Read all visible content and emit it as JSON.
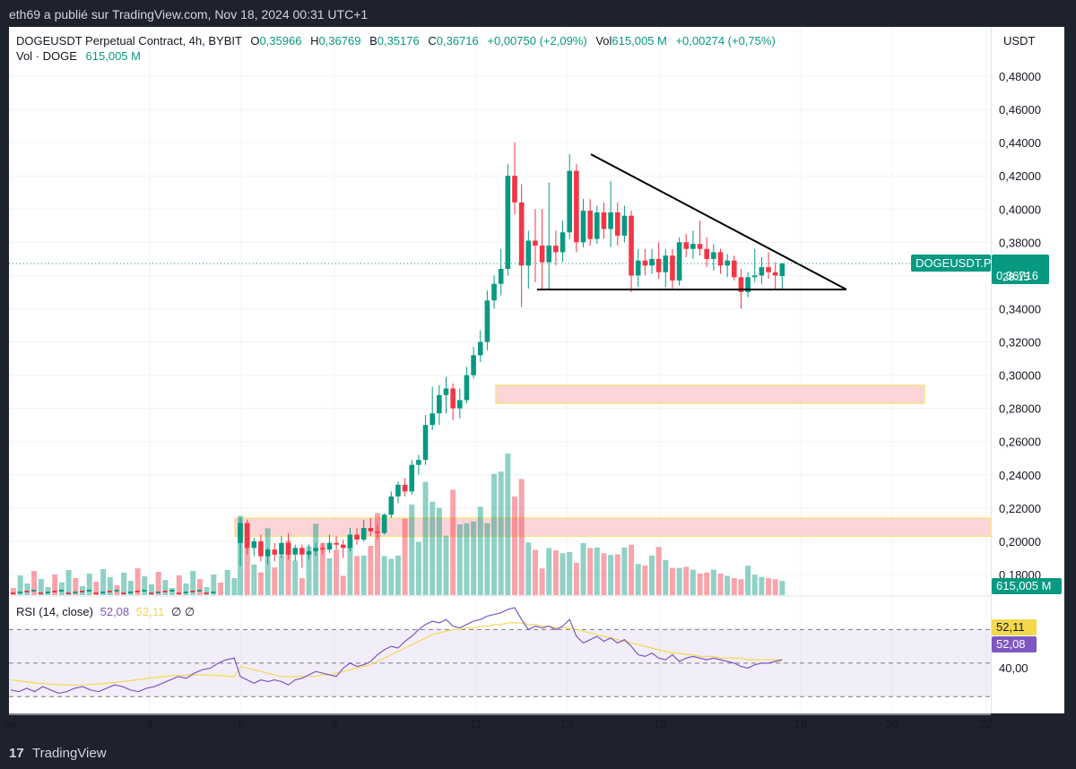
{
  "header": {
    "text": "eth69 a publié sur TradingView.com, Nov 18, 2024 00:31 UTC+1"
  },
  "legend": {
    "symbol": "DOGEUSDT Perpetual Contract, 4h, BYBIT",
    "o_label": "O",
    "o": "0,35966",
    "h_label": "H",
    "h": "0,36769",
    "b_label": "B",
    "b": "0,35176",
    "c_label": "C",
    "c": "0,36716",
    "chg": "+0,00750 (+2,09%)",
    "vol_label": "Vol",
    "vol": "615,005 M",
    "vol_chg": "+0,00274 (+0,75%)",
    "vol_row_label": "Vol · DOGE",
    "vol_row_value": "615,005 M"
  },
  "rsi_legend": {
    "label": "RSI (14, close)",
    "v1": "52,08",
    "v2": "52,11",
    "icons": "∅  ∅"
  },
  "scale": {
    "currency": "USDT"
  },
  "badges": {
    "symbol": "DOGEUSDT.P",
    "price": "0,36716",
    "countdown": "28:15",
    "volume": "615,005 M",
    "rsi_ma": "52,11",
    "rsi": "52,08",
    "rsi_level": "40,00"
  },
  "footer": {
    "logo": "17",
    "brand": "TradingView"
  },
  "colors": {
    "up": "#089981",
    "down": "#f23645",
    "rsi": "#7e57c2",
    "rsi_ma": "#f3d84e",
    "zone": "#fcd5d8"
  },
  "chart_data": {
    "type": "candlestick",
    "y_unit": "USDT",
    "price_ticks": [
      "0,48000",
      "0,46000",
      "0,44000",
      "0,42000",
      "0,40000",
      "0,38000",
      "0,36000",
      "0,34000",
      "0,32000",
      "0,30000",
      "0,28000",
      "0,26000",
      "0,24000",
      "0,22000",
      "0,20000",
      "0,18000"
    ],
    "ylim": [
      0.16,
      0.49
    ],
    "x_ticks": [
      "ov",
      "4",
      "6",
      "8",
      "11",
      "13",
      "15",
      "18",
      "20",
      "22"
    ],
    "candles": [
      {
        "o": 0.199,
        "h": 0.214,
        "l": 0.185,
        "c": 0.211
      },
      {
        "o": 0.211,
        "h": 0.213,
        "l": 0.192,
        "c": 0.196
      },
      {
        "o": 0.196,
        "h": 0.202,
        "l": 0.191,
        "c": 0.2
      },
      {
        "o": 0.2,
        "h": 0.204,
        "l": 0.188,
        "c": 0.191
      },
      {
        "o": 0.191,
        "h": 0.196,
        "l": 0.186,
        "c": 0.195
      },
      {
        "o": 0.195,
        "h": 0.199,
        "l": 0.188,
        "c": 0.192
      },
      {
        "o": 0.192,
        "h": 0.203,
        "l": 0.19,
        "c": 0.199
      },
      {
        "o": 0.199,
        "h": 0.205,
        "l": 0.189,
        "c": 0.192
      },
      {
        "o": 0.192,
        "h": 0.198,
        "l": 0.188,
        "c": 0.196
      },
      {
        "o": 0.196,
        "h": 0.198,
        "l": 0.184,
        "c": 0.192
      },
      {
        "o": 0.192,
        "h": 0.198,
        "l": 0.189,
        "c": 0.194
      },
      {
        "o": 0.194,
        "h": 0.199,
        "l": 0.191,
        "c": 0.196
      },
      {
        "o": 0.196,
        "h": 0.199,
        "l": 0.192,
        "c": 0.195
      },
      {
        "o": 0.195,
        "h": 0.204,
        "l": 0.193,
        "c": 0.199
      },
      {
        "o": 0.199,
        "h": 0.203,
        "l": 0.195,
        "c": 0.198
      },
      {
        "o": 0.198,
        "h": 0.201,
        "l": 0.19,
        "c": 0.196
      },
      {
        "o": 0.196,
        "h": 0.208,
        "l": 0.194,
        "c": 0.204
      },
      {
        "o": 0.204,
        "h": 0.208,
        "l": 0.198,
        "c": 0.201
      },
      {
        "o": 0.201,
        "h": 0.213,
        "l": 0.2,
        "c": 0.208
      },
      {
        "o": 0.208,
        "h": 0.214,
        "l": 0.203,
        "c": 0.206
      },
      {
        "o": 0.206,
        "h": 0.21,
        "l": 0.201,
        "c": 0.205
      },
      {
        "o": 0.205,
        "h": 0.217,
        "l": 0.204,
        "c": 0.216
      },
      {
        "o": 0.216,
        "h": 0.23,
        "l": 0.214,
        "c": 0.227
      },
      {
        "o": 0.227,
        "h": 0.236,
        "l": 0.223,
        "c": 0.234
      },
      {
        "o": 0.234,
        "h": 0.238,
        "l": 0.227,
        "c": 0.23
      },
      {
        "o": 0.23,
        "h": 0.249,
        "l": 0.228,
        "c": 0.246
      },
      {
        "o": 0.246,
        "h": 0.252,
        "l": 0.24,
        "c": 0.249
      },
      {
        "o": 0.249,
        "h": 0.276,
        "l": 0.246,
        "c": 0.27
      },
      {
        "o": 0.27,
        "h": 0.293,
        "l": 0.267,
        "c": 0.277
      },
      {
        "o": 0.277,
        "h": 0.294,
        "l": 0.27,
        "c": 0.288
      },
      {
        "o": 0.288,
        "h": 0.299,
        "l": 0.277,
        "c": 0.292
      },
      {
        "o": 0.292,
        "h": 0.295,
        "l": 0.273,
        "c": 0.28
      },
      {
        "o": 0.28,
        "h": 0.292,
        "l": 0.274,
        "c": 0.285
      },
      {
        "o": 0.285,
        "h": 0.305,
        "l": 0.283,
        "c": 0.3
      },
      {
        "o": 0.3,
        "h": 0.317,
        "l": 0.298,
        "c": 0.312
      },
      {
        "o": 0.312,
        "h": 0.327,
        "l": 0.308,
        "c": 0.32
      },
      {
        "o": 0.32,
        "h": 0.351,
        "l": 0.315,
        "c": 0.345
      },
      {
        "o": 0.345,
        "h": 0.36,
        "l": 0.34,
        "c": 0.355
      },
      {
        "o": 0.355,
        "h": 0.376,
        "l": 0.348,
        "c": 0.364
      },
      {
        "o": 0.364,
        "h": 0.427,
        "l": 0.36,
        "c": 0.42
      },
      {
        "o": 0.42,
        "h": 0.44,
        "l": 0.397,
        "c": 0.404
      },
      {
        "o": 0.404,
        "h": 0.415,
        "l": 0.341,
        "c": 0.366
      },
      {
        "o": 0.366,
        "h": 0.387,
        "l": 0.352,
        "c": 0.381
      },
      {
        "o": 0.381,
        "h": 0.4,
        "l": 0.356,
        "c": 0.378
      },
      {
        "o": 0.378,
        "h": 0.4,
        "l": 0.352,
        "c": 0.368
      },
      {
        "o": 0.368,
        "h": 0.416,
        "l": 0.352,
        "c": 0.378
      },
      {
        "o": 0.378,
        "h": 0.387,
        "l": 0.366,
        "c": 0.374
      },
      {
        "o": 0.374,
        "h": 0.393,
        "l": 0.368,
        "c": 0.386
      },
      {
        "o": 0.386,
        "h": 0.433,
        "l": 0.382,
        "c": 0.423
      },
      {
        "o": 0.423,
        "h": 0.427,
        "l": 0.374,
        "c": 0.38
      },
      {
        "o": 0.38,
        "h": 0.406,
        "l": 0.377,
        "c": 0.399
      },
      {
        "o": 0.399,
        "h": 0.406,
        "l": 0.378,
        "c": 0.382
      },
      {
        "o": 0.382,
        "h": 0.402,
        "l": 0.379,
        "c": 0.398
      },
      {
        "o": 0.398,
        "h": 0.404,
        "l": 0.382,
        "c": 0.388
      },
      {
        "o": 0.388,
        "h": 0.417,
        "l": 0.377,
        "c": 0.398
      },
      {
        "o": 0.398,
        "h": 0.404,
        "l": 0.378,
        "c": 0.384
      },
      {
        "o": 0.384,
        "h": 0.402,
        "l": 0.38,
        "c": 0.396
      },
      {
        "o": 0.396,
        "h": 0.399,
        "l": 0.35,
        "c": 0.36
      },
      {
        "o": 0.36,
        "h": 0.376,
        "l": 0.353,
        "c": 0.369
      },
      {
        "o": 0.369,
        "h": 0.376,
        "l": 0.36,
        "c": 0.366
      },
      {
        "o": 0.366,
        "h": 0.376,
        "l": 0.361,
        "c": 0.37
      },
      {
        "o": 0.37,
        "h": 0.38,
        "l": 0.358,
        "c": 0.362
      },
      {
        "o": 0.362,
        "h": 0.376,
        "l": 0.353,
        "c": 0.372
      },
      {
        "o": 0.372,
        "h": 0.376,
        "l": 0.352,
        "c": 0.357
      },
      {
        "o": 0.357,
        "h": 0.383,
        "l": 0.354,
        "c": 0.38
      },
      {
        "o": 0.38,
        "h": 0.385,
        "l": 0.371,
        "c": 0.376
      },
      {
        "o": 0.376,
        "h": 0.387,
        "l": 0.37,
        "c": 0.379
      },
      {
        "o": 0.379,
        "h": 0.393,
        "l": 0.372,
        "c": 0.376
      },
      {
        "o": 0.376,
        "h": 0.383,
        "l": 0.365,
        "c": 0.37
      },
      {
        "o": 0.37,
        "h": 0.379,
        "l": 0.363,
        "c": 0.374
      },
      {
        "o": 0.374,
        "h": 0.376,
        "l": 0.361,
        "c": 0.366
      },
      {
        "o": 0.366,
        "h": 0.373,
        "l": 0.359,
        "c": 0.369
      },
      {
        "o": 0.369,
        "h": 0.372,
        "l": 0.357,
        "c": 0.359
      },
      {
        "o": 0.359,
        "h": 0.364,
        "l": 0.34,
        "c": 0.35
      },
      {
        "o": 0.35,
        "h": 0.362,
        "l": 0.347,
        "c": 0.359
      },
      {
        "o": 0.359,
        "h": 0.376,
        "l": 0.356,
        "c": 0.36
      },
      {
        "o": 0.36,
        "h": 0.371,
        "l": 0.355,
        "c": 0.365
      },
      {
        "o": 0.365,
        "h": 0.374,
        "l": 0.358,
        "c": 0.362
      },
      {
        "o": 0.362,
        "h": 0.368,
        "l": 0.352,
        "c": 0.36
      },
      {
        "o": 0.3597,
        "h": 0.3677,
        "l": 0.3518,
        "c": 0.3672
      }
    ],
    "volume": [
      140,
      102,
      54,
      40,
      118,
      49,
      70,
      96,
      61,
      30,
      86,
      126,
      92,
      65,
      80,
      34,
      100,
      69,
      70,
      87,
      145,
      69,
      64,
      70,
      135,
      160,
      94,
      200,
      165,
      154,
      105,
      186,
      125,
      127,
      130,
      156,
      127,
      214,
      218,
      250,
      174,
      205,
      93,
      80,
      47,
      83,
      79,
      74,
      76,
      57,
      92,
      83,
      84,
      74,
      71,
      72,
      84,
      89,
      55,
      52,
      70,
      85,
      62,
      48,
      48,
      50,
      45,
      38,
      40,
      45,
      38,
      34,
      30,
      28,
      52,
      36,
      32,
      30,
      28,
      25
    ],
    "rsi": [
      42,
      40,
      38,
      40,
      39,
      40,
      39,
      37,
      40,
      41,
      43,
      45,
      44,
      43,
      42,
      47,
      50,
      48,
      49,
      51,
      55,
      58,
      60,
      59,
      63,
      66,
      70,
      73,
      75,
      74,
      76,
      72,
      71,
      73,
      75,
      76,
      78,
      79,
      80,
      82,
      83,
      76,
      70,
      72,
      71,
      72,
      70,
      72,
      76,
      66,
      62,
      64,
      66,
      63,
      65,
      62,
      64,
      60,
      55,
      54,
      56,
      53,
      52,
      55,
      51,
      53,
      54,
      53,
      52,
      53,
      52,
      51,
      50,
      48,
      47,
      49,
      50,
      50,
      51,
      52
    ],
    "rsi_ma": [
      48,
      47,
      46,
      45,
      44,
      43,
      42,
      42,
      42,
      42,
      42,
      42,
      43,
      43,
      44,
      45,
      46,
      47,
      48,
      49,
      51,
      53,
      55,
      57,
      59,
      61,
      63,
      65,
      67,
      68,
      69,
      70,
      70,
      71,
      71,
      72,
      72,
      73,
      73,
      74,
      74,
      74,
      73,
      73,
      72,
      72,
      71,
      71,
      71,
      70,
      69,
      68,
      67,
      66,
      65,
      64,
      63,
      62,
      61,
      60,
      59,
      58,
      57,
      56,
      56,
      55,
      55,
      54,
      54,
      54,
      53,
      53,
      53,
      53,
      52,
      52,
      52,
      52,
      52,
      52
    ],
    "rsi_bands": [
      70,
      50,
      30
    ],
    "rsi_ylim": [
      20,
      90
    ],
    "zones": [
      {
        "from": 0.283,
        "to": 0.294
      },
      {
        "from": 0.203,
        "to": 0.214
      }
    ],
    "triangle": {
      "apex_price": 0.3516,
      "upper_start_price": 0.433,
      "base_price": 0.3516
    }
  }
}
